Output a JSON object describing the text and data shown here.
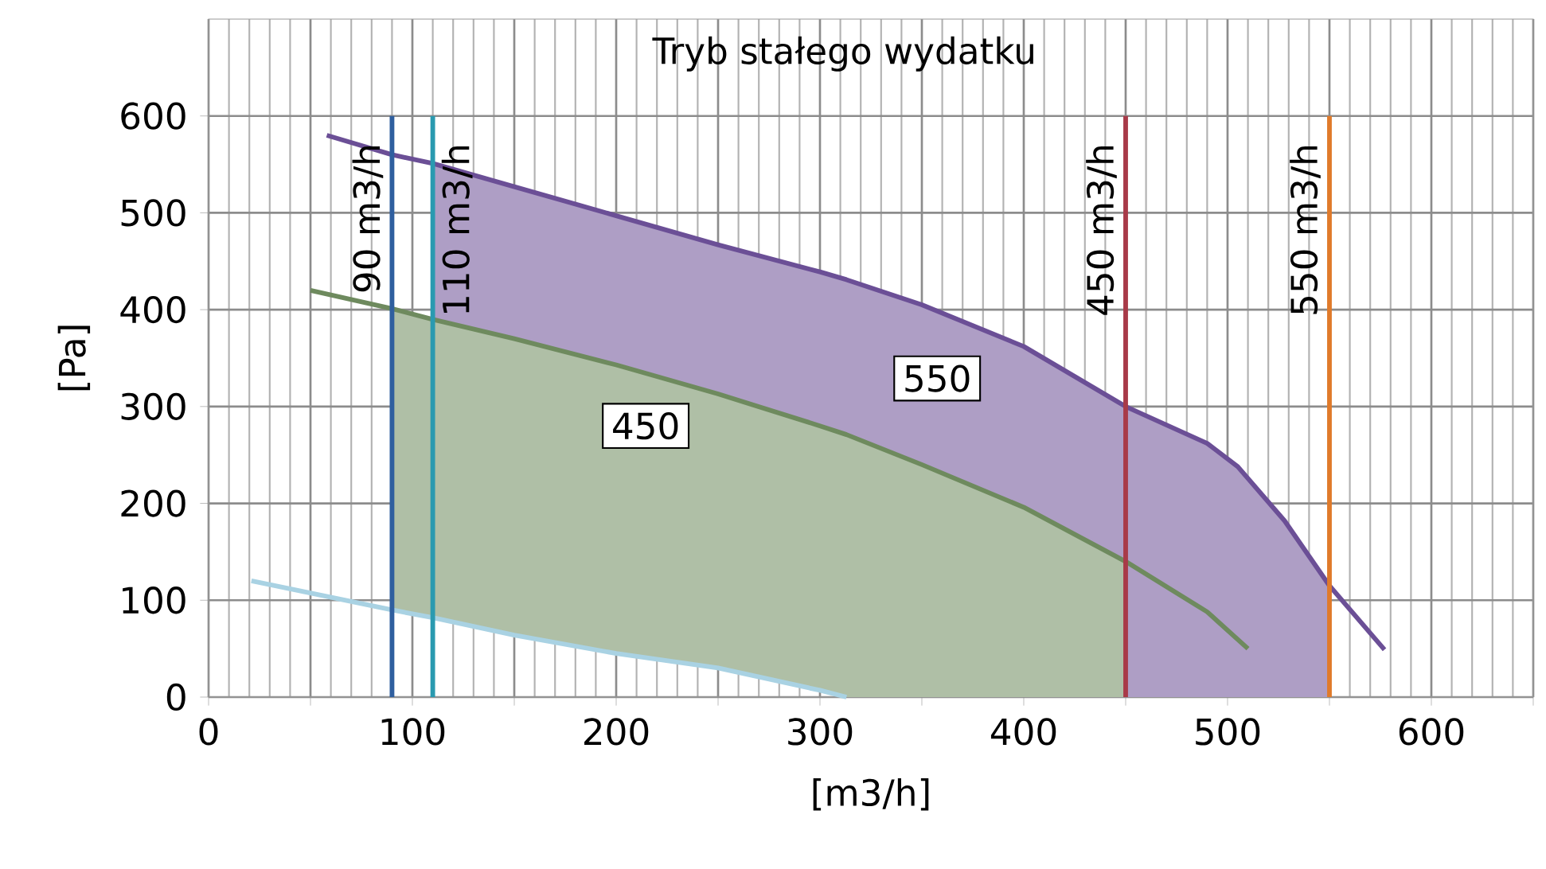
{
  "chart_data": {
    "type": "line",
    "title": "Tryb stałego wydatku",
    "xlabel": "[m3/h]",
    "ylabel": "[Pa]",
    "xlim": [
      0,
      650
    ],
    "ylim": [
      0,
      700
    ],
    "xticks": [
      0,
      {
        "value": 50,
        "label": null
      },
      100,
      {
        "value": 150,
        "label": null
      },
      200,
      {
        "value": 250,
        "label": null
      },
      300,
      {
        "value": 350,
        "label": null
      },
      400,
      {
        "value": 450,
        "label": null
      },
      500,
      {
        "value": 550,
        "label": null
      },
      600,
      {
        "value": 650,
        "label": null
      }
    ],
    "yticks": [
      0,
      100,
      200,
      300,
      400,
      500,
      600
    ],
    "grid": true,
    "series": [
      {
        "color": "#6b4f96",
        "x": [
          58,
          90,
          110,
          150,
          200,
          250,
          300,
          313,
          350,
          400,
          450,
          490,
          505,
          528,
          550,
          577
        ],
        "values": [
          580,
          560,
          551,
          527,
          497,
          467,
          439,
          431,
          405,
          362,
          300,
          262,
          238,
          182,
          115,
          49
        ],
        "upper": [
          null,
          null,
          551,
          527,
          497,
          467,
          439,
          431,
          405,
          362,
          300,
          262,
          238,
          182,
          115,
          null
        ],
        "lower": [
          null,
          null,
          82,
          64,
          45,
          30,
          7,
          0,
          0,
          0,
          0,
          0,
          0,
          0,
          0,
          null
        ]
      },
      {
        "color": "#6e8a5e",
        "x": [
          50,
          90,
          110,
          150,
          200,
          250,
          300,
          313,
          350,
          400,
          450,
          490,
          510
        ],
        "values": [
          420,
          401,
          390,
          370,
          343,
          313,
          280,
          271,
          240,
          196,
          140,
          88,
          50
        ],
        "upper": [
          null,
          401,
          390,
          370,
          343,
          313,
          280,
          271,
          240,
          196,
          140,
          null,
          null
        ],
        "lower": [
          null,
          90,
          82,
          64,
          45,
          30,
          7,
          0,
          0,
          0,
          0,
          null,
          null
        ]
      },
      {
        "color": "#a9d2e3",
        "x": [
          21,
          90,
          110,
          150,
          200,
          250,
          300,
          313
        ],
        "values": [
          120,
          90,
          82,
          64,
          45,
          30,
          7,
          0
        ]
      }
    ],
    "ref_lines": [
      {
        "axis": "x",
        "value": 90,
        "label": "90 m3/h",
        "color": "#2f5f9f"
      },
      {
        "axis": "x",
        "value": 110,
        "label": "110 m3/h",
        "color": "#2a9ab0"
      },
      {
        "axis": "x",
        "value": 450,
        "label": "450 m3/h",
        "color": "#a83a48"
      },
      {
        "axis": "x",
        "value": 550,
        "label": "550 m3/h",
        "color": "#e07a2a"
      }
    ],
    "annotations": [
      "550",
      "450"
    ]
  }
}
